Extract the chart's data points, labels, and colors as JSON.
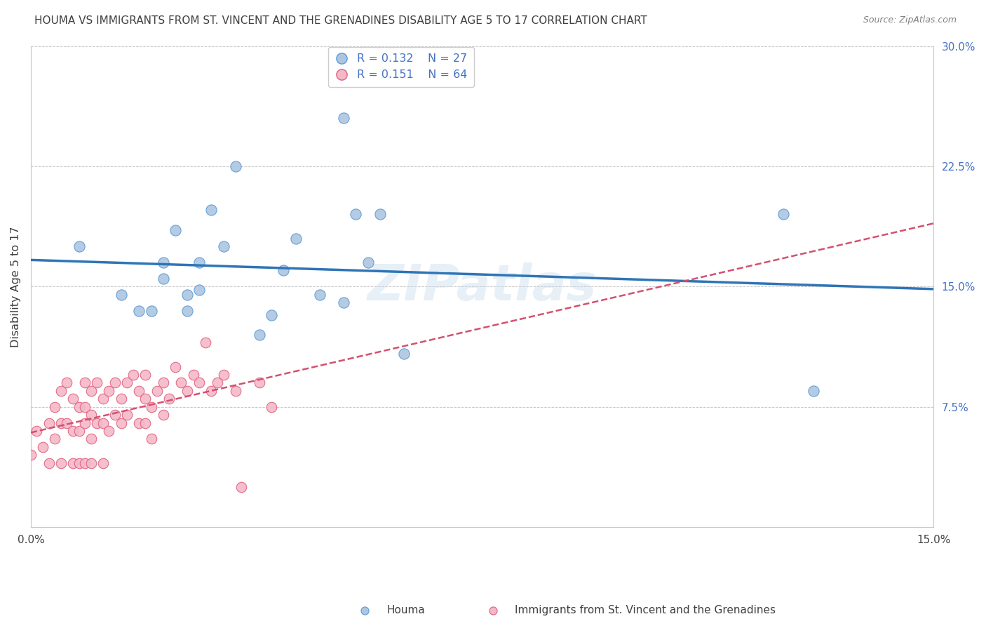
{
  "title": "HOUMA VS IMMIGRANTS FROM ST. VINCENT AND THE GRENADINES DISABILITY AGE 5 TO 17 CORRELATION CHART",
  "source": "Source: ZipAtlas.com",
  "ylabel": "Disability Age 5 to 17",
  "xlim": [
    0,
    0.15
  ],
  "ylim": [
    0,
    0.3
  ],
  "xtick_vals": [
    0.0,
    0.05,
    0.1,
    0.15
  ],
  "xtick_labels": [
    "0.0%",
    "",
    "",
    "15.0%"
  ],
  "ytick_right_vals": [
    0.075,
    0.15,
    0.225,
    0.3
  ],
  "ytick_right_labels": [
    "7.5%",
    "15.0%",
    "22.5%",
    "30.0%"
  ],
  "watermark": "ZIPatlas",
  "blue_color": "#adc6e0",
  "blue_edge_color": "#5b9bd5",
  "pink_color": "#f4b8c8",
  "pink_edge_color": "#e06080",
  "trend_blue_color": "#2e75b6",
  "trend_pink_color": "#d45070",
  "grid_color": "#c8c8c8",
  "background_color": "#ffffff",
  "title_color": "#404040",
  "source_color": "#808080",
  "axis_tick_color": "#4472c4",
  "houma_x": [
    0.008,
    0.015,
    0.018,
    0.02,
    0.022,
    0.022,
    0.024,
    0.026,
    0.026,
    0.028,
    0.028,
    0.03,
    0.032,
    0.034,
    0.038,
    0.04,
    0.042,
    0.044,
    0.048,
    0.052,
    0.052,
    0.054,
    0.056,
    0.058,
    0.062,
    0.125,
    0.13
  ],
  "houma_y": [
    0.175,
    0.145,
    0.135,
    0.135,
    0.165,
    0.155,
    0.185,
    0.145,
    0.135,
    0.165,
    0.148,
    0.198,
    0.175,
    0.225,
    0.12,
    0.132,
    0.16,
    0.18,
    0.145,
    0.255,
    0.14,
    0.195,
    0.165,
    0.195,
    0.108,
    0.195,
    0.085
  ],
  "immigrants_x": [
    0.0,
    0.001,
    0.002,
    0.003,
    0.003,
    0.004,
    0.004,
    0.005,
    0.005,
    0.005,
    0.006,
    0.006,
    0.007,
    0.007,
    0.007,
    0.008,
    0.008,
    0.008,
    0.009,
    0.009,
    0.009,
    0.009,
    0.01,
    0.01,
    0.01,
    0.01,
    0.011,
    0.011,
    0.012,
    0.012,
    0.012,
    0.013,
    0.013,
    0.014,
    0.014,
    0.015,
    0.015,
    0.016,
    0.016,
    0.017,
    0.018,
    0.018,
    0.019,
    0.019,
    0.019,
    0.02,
    0.02,
    0.021,
    0.022,
    0.022,
    0.023,
    0.024,
    0.025,
    0.026,
    0.027,
    0.028,
    0.029,
    0.03,
    0.031,
    0.032,
    0.034,
    0.035,
    0.038,
    0.04
  ],
  "immigrants_y": [
    0.045,
    0.06,
    0.05,
    0.065,
    0.04,
    0.075,
    0.055,
    0.085,
    0.065,
    0.04,
    0.09,
    0.065,
    0.08,
    0.06,
    0.04,
    0.075,
    0.06,
    0.04,
    0.09,
    0.075,
    0.065,
    0.04,
    0.085,
    0.07,
    0.055,
    0.04,
    0.09,
    0.065,
    0.08,
    0.065,
    0.04,
    0.085,
    0.06,
    0.09,
    0.07,
    0.08,
    0.065,
    0.09,
    0.07,
    0.095,
    0.085,
    0.065,
    0.095,
    0.08,
    0.065,
    0.075,
    0.055,
    0.085,
    0.09,
    0.07,
    0.08,
    0.1,
    0.09,
    0.085,
    0.095,
    0.09,
    0.115,
    0.085,
    0.09,
    0.095,
    0.085,
    0.025,
    0.09,
    0.075
  ],
  "legend_entries": [
    {
      "label": "R = 0.132    N = 27",
      "color": "#adc6e0",
      "edge": "#5b9bd5"
    },
    {
      "label": "R = 0.151    N = 64",
      "color": "#f4b8c8",
      "edge": "#e06080"
    }
  ],
  "bottom_legend": [
    {
      "label": "Houma",
      "color": "#adc6e0",
      "edge": "#5b9bd5"
    },
    {
      "label": "Immigrants from St. Vincent and the Grenadines",
      "color": "#f4b8c8",
      "edge": "#e06080"
    }
  ]
}
